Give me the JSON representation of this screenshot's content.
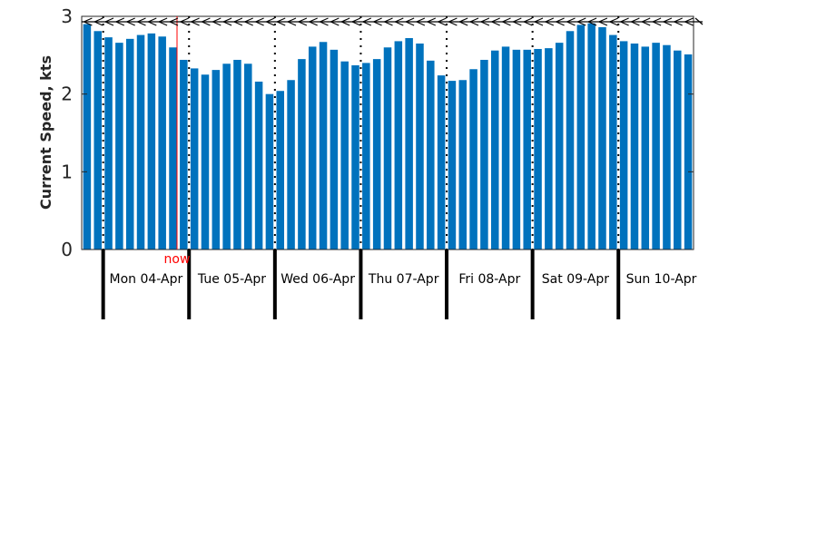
{
  "chart_data": {
    "type": "bar",
    "title": "",
    "xlabel": "",
    "ylabel": "Current Speed, kts",
    "ylim": [
      0,
      3
    ],
    "yticks": [
      0,
      1,
      2,
      3
    ],
    "bar_color": "#0072BD",
    "now_color": "#FF0000",
    "now_label": "now",
    "now_index": 9,
    "day_labels": [
      "Mon 04-Apr",
      "Tue 05-Apr",
      "Wed 06-Apr",
      "Thu 07-Apr",
      "Fri 08-Apr",
      "Sat 09-Apr",
      "Sun 10-Apr"
    ],
    "values": [
      2.9,
      2.81,
      2.73,
      2.66,
      2.71,
      2.76,
      2.78,
      2.74,
      2.6,
      2.44,
      2.33,
      2.25,
      2.31,
      2.39,
      2.44,
      2.39,
      2.16,
      2.0,
      2.04,
      2.18,
      2.45,
      2.61,
      2.67,
      2.57,
      2.42,
      2.37,
      2.4,
      2.45,
      2.6,
      2.68,
      2.72,
      2.65,
      2.43,
      2.24,
      2.17,
      2.18,
      2.32,
      2.44,
      2.56,
      2.61,
      2.57,
      2.57,
      2.58,
      2.59,
      2.66,
      2.81,
      2.89,
      2.91,
      2.86,
      2.76,
      2.68,
      2.65,
      2.61,
      2.66,
      2.63,
      2.56,
      2.51
    ],
    "direction_markers": "arrows along top edge",
    "grid": false,
    "legend": "none"
  }
}
